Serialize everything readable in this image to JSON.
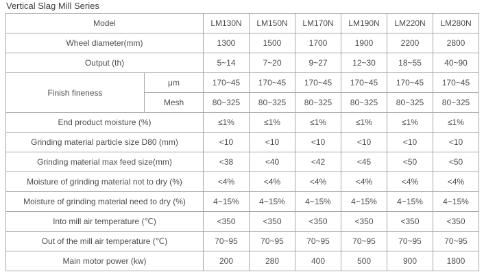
{
  "title": "Vertical Slag Mill Series",
  "colors": {
    "border": "#a6a6a6",
    "text": "#4c4c4c",
    "title": "#3f3f3f",
    "background": "#ffffff"
  },
  "table": {
    "header": {
      "label": "Model",
      "models": [
        "LM130N",
        "LM150N",
        "LM170N",
        "LM190N",
        "LM220N",
        "LM280N"
      ]
    },
    "wheel_diameter": {
      "label": "Wheel diameter(mm)",
      "values": [
        "1300",
        "1500",
        "1700",
        "1900",
        "2200",
        "2800"
      ]
    },
    "output": {
      "label": "Output (th)",
      "values": [
        "5~14",
        "7~20",
        "9~27",
        "12~30",
        "18~55",
        "40~90"
      ]
    },
    "finish_fineness": {
      "label": "Finish fineness",
      "um": {
        "unit": "μm",
        "values": [
          "170~45",
          "170~45",
          "170~45",
          "170~45",
          "170~45",
          "170~45"
        ]
      },
      "mesh": {
        "unit": "Mesh",
        "values": [
          "80~325",
          "80~325",
          "80~325",
          "80~325",
          "80~325",
          "80~325"
        ]
      }
    },
    "end_product_moisture": {
      "label": "End product moisture (%)",
      "values": [
        "≤1%",
        "≤1%",
        "≤1%",
        "≤1%",
        "≤1%",
        "≤1%"
      ]
    },
    "particle_size_d80": {
      "label": "Grinding material particle size D80 (mm)",
      "values": [
        "<10",
        "<10",
        "<10",
        "<10",
        "<10",
        "<10"
      ]
    },
    "max_feed_size": {
      "label": "Grinding material max feed size(mm)",
      "values": [
        "<38",
        "<40",
        "<42",
        "<45",
        "<50",
        "<50"
      ]
    },
    "moisture_not_to_dry": {
      "label": "Moisture of grinding material not to dry (%)",
      "values": [
        "<4%",
        "<4%",
        "<4%",
        "<4%",
        "<4%",
        "<4%"
      ]
    },
    "moisture_need_to_dry": {
      "label": "Moisture of grinding material need to dry (%)",
      "values": [
        "4~15%",
        "4~15%",
        "4~15%",
        "4~15%",
        "4~15%",
        "4~15%"
      ]
    },
    "into_mill_temp": {
      "label": "Into mill air temperature (℃)",
      "values": [
        "<350",
        "<350",
        "<350",
        "<350",
        "<350",
        "<350"
      ]
    },
    "out_mill_temp": {
      "label": "Out of the mill air temperature (℃)",
      "values": [
        "70~95",
        "70~95",
        "70~95",
        "70~95",
        "70~95",
        "70~95"
      ]
    },
    "main_motor_power": {
      "label": "Main motor power (kw)",
      "values": [
        "200",
        "280",
        "400",
        "500",
        "900",
        "1800"
      ]
    }
  }
}
